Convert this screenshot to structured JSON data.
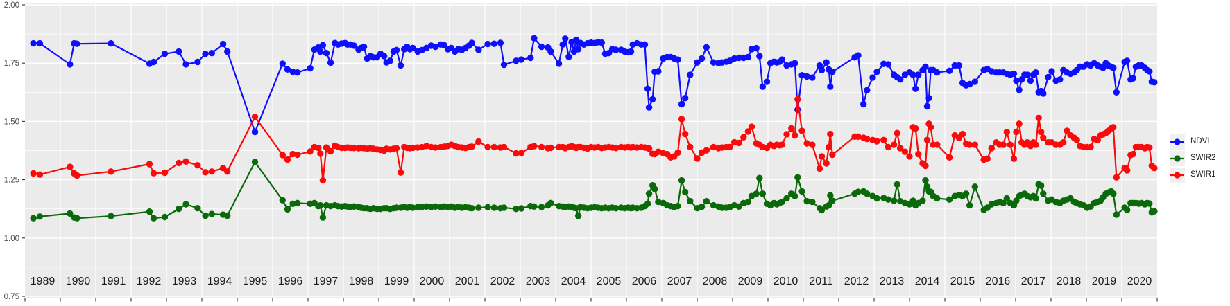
{
  "window": {
    "background": "#FFFFFF"
  },
  "plot": {
    "background": "#EBEBEB",
    "grid_color": "#FFFFFF",
    "tick_color": "#333333",
    "y_label_color": "#4D4D4D",
    "x_label_color": "#1A1A1A"
  },
  "legend": {
    "key_background": "#F0F0F0",
    "items": [
      {
        "label": "NDVI"
      },
      {
        "label": "SWIR2"
      },
      {
        "label": "SWIR1"
      }
    ]
  },
  "y_axis": {
    "tick_labels": [
      "2.00",
      "1.75",
      "1.50",
      "1.25",
      "1.00",
      "0.75"
    ],
    "tick_values": [
      2.0,
      1.75,
      1.5,
      1.25,
      1.0,
      0.75
    ]
  },
  "x_axis": {
    "year_labels": [
      "1989",
      "1990",
      "1991",
      "1992",
      "1993",
      "1994",
      "1995",
      "1996",
      "1997",
      "1998",
      "1999",
      "2000",
      "2001",
      "2002",
      "2003",
      "2004",
      "2005",
      "2006",
      "2007",
      "2008",
      "2009",
      "2010",
      "2011",
      "2012",
      "2013",
      "2014",
      "2015",
      "2016",
      "2017",
      "2018",
      "2019",
      "2020"
    ]
  },
  "chart_data": {
    "type": "line",
    "title": "",
    "xlabel": "",
    "ylabel": "",
    "x_range": [
      1989,
      2021
    ],
    "y_range": [
      0.75,
      2.0
    ],
    "y_major_ticks": [
      0.75,
      1.0,
      1.25,
      1.5,
      1.75,
      2.0
    ],
    "y_minor_ticks": [
      0.875,
      1.125,
      1.375,
      1.625,
      1.875
    ],
    "grid": true,
    "legend_position": "right",
    "x": [
      1989.24,
      1989.42,
      1990.27,
      1990.39,
      1990.47,
      1991.43,
      1992.52,
      1992.64,
      1992.95,
      1993.35,
      1993.55,
      1993.88,
      1994.1,
      1994.28,
      1994.6,
      1994.72,
      1995.5,
      1996.28,
      1996.42,
      1996.57,
      1996.7,
      1997.06,
      1997.18,
      1997.29,
      1997.35,
      1997.42,
      1997.52,
      1997.64,
      1997.76,
      1997.85,
      1997.95,
      1998.05,
      1998.12,
      1998.2,
      1998.3,
      1998.43,
      1998.5,
      1998.58,
      1998.67,
      1998.76,
      1998.85,
      1998.95,
      1999.05,
      1999.15,
      1999.22,
      1999.32,
      1999.42,
      1999.5,
      1999.62,
      1999.72,
      1999.8,
      1999.88,
      1999.96,
      2000.1,
      2000.22,
      2000.35,
      2000.48,
      2000.6,
      2000.75,
      2000.85,
      2000.95,
      2001.05,
      2001.15,
      2001.25,
      2001.35,
      2001.45,
      2001.55,
      2001.63,
      2001.82,
      2002.08,
      2002.26,
      2002.44,
      2002.54,
      2002.88,
      2003.03,
      2003.29,
      2003.39,
      2003.6,
      2003.78,
      2003.86,
      2004.09,
      2004.2,
      2004.27,
      2004.37,
      2004.45,
      2004.52,
      2004.58,
      2004.64,
      2004.7,
      2004.8,
      2004.9,
      2005.0,
      2005.1,
      2005.2,
      2005.3,
      2005.4,
      2005.5,
      2005.6,
      2005.7,
      2005.85,
      2005.95,
      2006.05,
      2006.13,
      2006.18,
      2006.3,
      2006.42,
      2006.52,
      2006.6,
      2006.64,
      2006.74,
      2006.8,
      2006.9,
      2007.04,
      2007.15,
      2007.25,
      2007.35,
      2007.45,
      2007.56,
      2007.66,
      2007.8,
      2008.0,
      2008.13,
      2008.26,
      2008.46,
      2008.6,
      2008.7,
      2008.82,
      2008.92,
      2009.05,
      2009.18,
      2009.31,
      2009.44,
      2009.54,
      2009.67,
      2009.76,
      2009.85,
      2009.97,
      2010.07,
      2010.17,
      2010.25,
      2010.33,
      2010.4,
      2010.53,
      2010.66,
      2010.76,
      2010.84,
      2010.96,
      2011.1,
      2011.25,
      2011.46,
      2011.52,
      2011.65,
      2011.72,
      2011.76,
      2011.82,
      2012.45,
      2012.55,
      2012.7,
      2012.8,
      2012.96,
      2013.08,
      2013.27,
      2013.4,
      2013.56,
      2013.65,
      2013.74,
      2013.87,
      2014.0,
      2014.1,
      2014.17,
      2014.25,
      2014.37,
      2014.45,
      2014.5,
      2014.55,
      2014.6,
      2014.67,
      2014.78,
      2015.13,
      2015.28,
      2015.4,
      2015.5,
      2015.6,
      2015.7,
      2015.85,
      2016.1,
      2016.2,
      2016.32,
      2016.45,
      2016.55,
      2016.65,
      2016.75,
      2016.85,
      2016.95,
      2017.02,
      2017.1,
      2017.17,
      2017.25,
      2017.33,
      2017.42,
      2017.5,
      2017.57,
      2017.65,
      2017.72,
      2017.78,
      2017.92,
      2018.02,
      2018.14,
      2018.25,
      2018.35,
      2018.45,
      2018.55,
      2018.65,
      2018.73,
      2018.82,
      2018.92,
      2019.02,
      2019.12,
      2019.22,
      2019.32,
      2019.4,
      2019.47,
      2019.55,
      2019.62,
      2019.7,
      2019.76,
      2019.85,
      2020.08,
      2020.15,
      2020.25,
      2020.32,
      2020.4,
      2020.48,
      2020.56,
      2020.65,
      2020.72,
      2020.78,
      2020.85,
      2020.92
    ],
    "series": [
      {
        "name": "NDVI",
        "color": "#0F0FFF",
        "values": [
          1.835,
          1.835,
          1.745,
          1.835,
          1.833,
          1.835,
          1.748,
          1.755,
          1.79,
          1.8,
          1.745,
          1.755,
          1.79,
          1.793,
          1.832,
          1.8,
          1.455,
          1.748,
          1.723,
          1.713,
          1.71,
          1.728,
          1.808,
          1.817,
          1.8,
          1.827,
          1.793,
          1.752,
          1.836,
          1.83,
          1.834,
          1.836,
          1.83,
          1.83,
          1.825,
          1.808,
          1.815,
          1.82,
          1.77,
          1.78,
          1.775,
          1.775,
          1.79,
          1.78,
          1.753,
          1.76,
          1.8,
          1.806,
          1.74,
          1.81,
          1.82,
          1.81,
          1.815,
          1.8,
          1.806,
          1.815,
          1.825,
          1.82,
          1.83,
          1.827,
          1.81,
          1.815,
          1.8,
          1.81,
          1.807,
          1.815,
          1.825,
          1.837,
          1.807,
          1.832,
          1.833,
          1.837,
          1.743,
          1.76,
          1.765,
          1.773,
          1.857,
          1.82,
          1.817,
          1.8,
          1.748,
          1.83,
          1.855,
          1.777,
          1.84,
          1.8,
          1.85,
          1.81,
          1.836,
          1.83,
          1.835,
          1.838,
          1.836,
          1.84,
          1.838,
          1.79,
          1.793,
          1.81,
          1.807,
          1.807,
          1.8,
          1.797,
          1.8,
          1.83,
          1.835,
          1.83,
          1.83,
          1.64,
          1.56,
          1.595,
          1.713,
          1.715,
          1.77,
          1.776,
          1.776,
          1.77,
          1.765,
          1.574,
          1.6,
          1.7,
          1.753,
          1.77,
          1.818,
          1.753,
          1.75,
          1.753,
          1.756,
          1.76,
          1.77,
          1.773,
          1.773,
          1.776,
          1.81,
          1.814,
          1.78,
          1.649,
          1.67,
          1.75,
          1.756,
          1.753,
          1.756,
          1.765,
          1.74,
          1.745,
          1.75,
          1.55,
          1.698,
          1.693,
          1.688,
          1.74,
          1.72,
          1.753,
          1.723,
          1.649,
          1.713,
          1.775,
          1.783,
          1.574,
          1.634,
          1.688,
          1.713,
          1.747,
          1.745,
          1.7,
          1.69,
          1.68,
          1.7,
          1.71,
          1.7,
          1.64,
          1.7,
          1.72,
          1.735,
          1.565,
          1.6,
          1.72,
          1.72,
          1.71,
          1.717,
          1.74,
          1.74,
          1.665,
          1.655,
          1.66,
          1.67,
          1.72,
          1.725,
          1.715,
          1.71,
          1.71,
          1.71,
          1.705,
          1.7,
          1.705,
          1.675,
          1.635,
          1.68,
          1.7,
          1.7,
          1.675,
          1.7,
          1.71,
          1.625,
          1.63,
          1.62,
          1.69,
          1.715,
          1.675,
          1.68,
          1.72,
          1.71,
          1.705,
          1.71,
          1.72,
          1.735,
          1.735,
          1.745,
          1.74,
          1.75,
          1.74,
          1.735,
          1.73,
          1.75,
          1.74,
          1.735,
          1.73,
          1.625,
          1.755,
          1.76,
          1.68,
          1.685,
          1.735,
          1.74,
          1.74,
          1.73,
          1.72,
          1.715,
          1.67,
          1.668
        ]
      },
      {
        "name": "SWIR2",
        "color": "#0A6A0A",
        "values": [
          1.085,
          1.092,
          1.105,
          1.088,
          1.085,
          1.094,
          1.113,
          1.085,
          1.09,
          1.125,
          1.145,
          1.128,
          1.096,
          1.103,
          1.1,
          1.096,
          1.326,
          1.162,
          1.123,
          1.147,
          1.15,
          1.147,
          1.15,
          1.137,
          1.14,
          1.088,
          1.14,
          1.137,
          1.14,
          1.137,
          1.135,
          1.137,
          1.135,
          1.133,
          1.135,
          1.133,
          1.13,
          1.128,
          1.128,
          1.125,
          1.128,
          1.125,
          1.125,
          1.128,
          1.128,
          1.125,
          1.128,
          1.13,
          1.13,
          1.133,
          1.13,
          1.133,
          1.13,
          1.133,
          1.133,
          1.135,
          1.133,
          1.135,
          1.133,
          1.135,
          1.133,
          1.135,
          1.13,
          1.133,
          1.13,
          1.132,
          1.13,
          1.128,
          1.13,
          1.132,
          1.13,
          1.128,
          1.13,
          1.125,
          1.127,
          1.137,
          1.135,
          1.133,
          1.14,
          1.15,
          1.137,
          1.135,
          1.133,
          1.135,
          1.133,
          1.13,
          1.128,
          1.095,
          1.133,
          1.13,
          1.128,
          1.13,
          1.132,
          1.13,
          1.128,
          1.13,
          1.128,
          1.13,
          1.128,
          1.13,
          1.128,
          1.13,
          1.128,
          1.13,
          1.128,
          1.13,
          1.137,
          1.147,
          1.19,
          1.226,
          1.21,
          1.155,
          1.15,
          1.14,
          1.137,
          1.133,
          1.137,
          1.247,
          1.197,
          1.158,
          1.128,
          1.134,
          1.158,
          1.14,
          1.135,
          1.13,
          1.13,
          1.132,
          1.14,
          1.135,
          1.15,
          1.155,
          1.18,
          1.19,
          1.257,
          1.19,
          1.147,
          1.14,
          1.15,
          1.145,
          1.15,
          1.155,
          1.17,
          1.19,
          1.18,
          1.26,
          1.2,
          1.158,
          1.155,
          1.128,
          1.12,
          1.135,
          1.14,
          1.183,
          1.16,
          1.19,
          1.198,
          1.2,
          1.19,
          1.18,
          1.17,
          1.172,
          1.165,
          1.16,
          1.23,
          1.158,
          1.15,
          1.145,
          1.16,
          1.14,
          1.15,
          1.16,
          1.247,
          1.22,
          1.2,
          1.198,
          1.18,
          1.17,
          1.165,
          1.18,
          1.185,
          1.18,
          1.19,
          1.14,
          1.22,
          1.12,
          1.13,
          1.145,
          1.15,
          1.155,
          1.15,
          1.17,
          1.15,
          1.14,
          1.16,
          1.18,
          1.185,
          1.19,
          1.18,
          1.175,
          1.18,
          1.17,
          1.23,
          1.225,
          1.19,
          1.16,
          1.165,
          1.155,
          1.15,
          1.16,
          1.165,
          1.17,
          1.155,
          1.15,
          1.145,
          1.14,
          1.13,
          1.135,
          1.15,
          1.155,
          1.16,
          1.175,
          1.19,
          1.195,
          1.2,
          1.19,
          1.1,
          1.13,
          1.12,
          1.15,
          1.15,
          1.15,
          1.148,
          1.15,
          1.145,
          1.15,
          1.148,
          1.11,
          1.115
        ]
      },
      {
        "name": "SWIR1",
        "color": "#FA0A0A",
        "values": [
          1.277,
          1.272,
          1.305,
          1.277,
          1.268,
          1.285,
          1.317,
          1.278,
          1.28,
          1.322,
          1.328,
          1.312,
          1.282,
          1.285,
          1.3,
          1.285,
          1.52,
          1.356,
          1.336,
          1.36,
          1.357,
          1.371,
          1.39,
          1.387,
          1.362,
          1.247,
          1.388,
          1.372,
          1.396,
          1.39,
          1.387,
          1.387,
          1.388,
          1.387,
          1.386,
          1.385,
          1.387,
          1.385,
          1.383,
          1.385,
          1.383,
          1.38,
          1.378,
          1.375,
          1.383,
          1.38,
          1.383,
          1.385,
          1.281,
          1.39,
          1.387,
          1.385,
          1.387,
          1.388,
          1.39,
          1.395,
          1.39,
          1.388,
          1.39,
          1.392,
          1.395,
          1.4,
          1.395,
          1.39,
          1.388,
          1.386,
          1.39,
          1.392,
          1.414,
          1.39,
          1.39,
          1.388,
          1.39,
          1.363,
          1.365,
          1.39,
          1.394,
          1.39,
          1.385,
          1.387,
          1.39,
          1.39,
          1.385,
          1.39,
          1.394,
          1.39,
          1.387,
          1.39,
          1.39,
          1.387,
          1.384,
          1.39,
          1.388,
          1.39,
          1.386,
          1.388,
          1.39,
          1.388,
          1.386,
          1.39,
          1.388,
          1.39,
          1.388,
          1.39,
          1.388,
          1.39,
          1.388,
          1.386,
          1.384,
          1.361,
          1.36,
          1.37,
          1.364,
          1.36,
          1.346,
          1.35,
          1.366,
          1.51,
          1.446,
          1.39,
          1.341,
          1.366,
          1.376,
          1.39,
          1.385,
          1.388,
          1.39,
          1.39,
          1.411,
          1.408,
          1.432,
          1.457,
          1.477,
          1.406,
          1.4,
          1.39,
          1.387,
          1.4,
          1.395,
          1.4,
          1.398,
          1.4,
          1.445,
          1.47,
          1.44,
          1.595,
          1.46,
          1.406,
          1.4,
          1.298,
          1.35,
          1.32,
          1.39,
          1.446,
          1.357,
          1.435,
          1.435,
          1.43,
          1.425,
          1.42,
          1.415,
          1.42,
          1.39,
          1.4,
          1.45,
          1.385,
          1.37,
          1.35,
          1.475,
          1.47,
          1.36,
          1.32,
          1.31,
          1.42,
          1.49,
          1.475,
          1.4,
          1.4,
          1.346,
          1.44,
          1.43,
          1.446,
          1.405,
          1.4,
          1.4,
          1.336,
          1.34,
          1.385,
          1.41,
          1.4,
          1.4,
          1.455,
          1.4,
          1.34,
          1.455,
          1.49,
          1.41,
          1.4,
          1.41,
          1.395,
          1.41,
          1.4,
          1.515,
          1.455,
          1.43,
          1.41,
          1.41,
          1.4,
          1.4,
          1.41,
          1.46,
          1.44,
          1.43,
          1.42,
          1.395,
          1.39,
          1.39,
          1.39,
          1.425,
          1.42,
          1.44,
          1.445,
          1.45,
          1.46,
          1.47,
          1.475,
          1.26,
          1.3,
          1.29,
          1.356,
          1.36,
          1.39,
          1.39,
          1.39,
          1.385,
          1.39,
          1.388,
          1.31,
          1.3
        ]
      }
    ]
  }
}
